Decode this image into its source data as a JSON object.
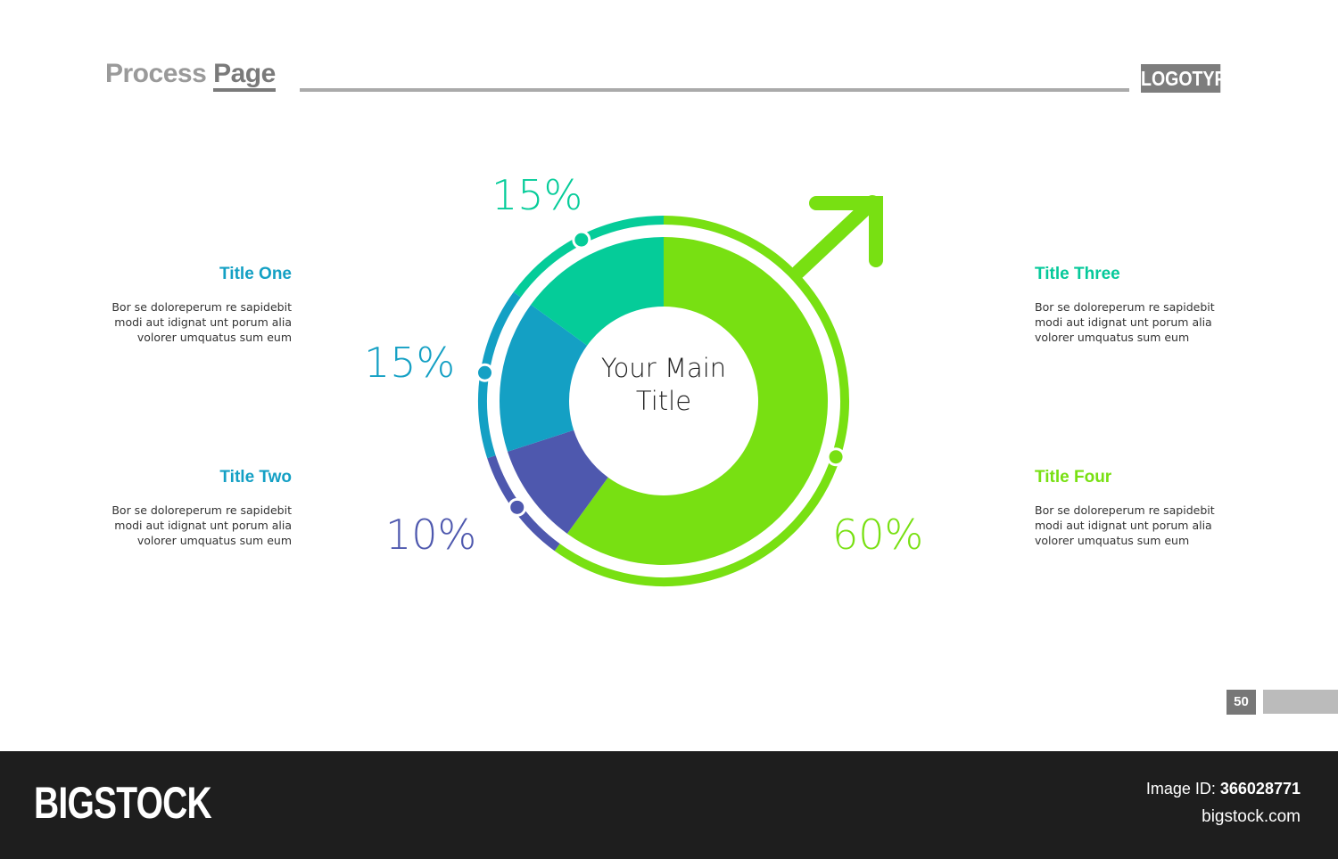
{
  "header": {
    "title_part1": "Process",
    "title_part2": "Page",
    "logo": "LOGOTYPE"
  },
  "blocks": [
    {
      "title": "Title One",
      "text": "Bor se doloreperum re sapidebit modi aut idignat unt porum alia volorer umquatus sum eum",
      "color": "#14a0c4"
    },
    {
      "title": "Title Two",
      "text": "Bor se doloreperum re sapidebit modi aut idignat unt porum alia volorer umquatus sum eum",
      "color": "#14a0c4"
    },
    {
      "title": "Title Three",
      "text": "Bor se doloreperum re sapidebit modi aut idignat unt porum alia volorer umquatus sum eum",
      "color": "#05c99a"
    },
    {
      "title": "Title Four",
      "text": "Bor se doloreperum re sapidebit modi aut idignat unt porum alia volorer umquatus sum eum",
      "color": "#78e012"
    }
  ],
  "chart_data": {
    "type": "pie",
    "variant": "donut",
    "center_label": "Your Main Title",
    "slices": [
      {
        "label": "60%",
        "value": 60,
        "color": "#78e012"
      },
      {
        "label": "10%",
        "value": 10,
        "color": "#4e58ae"
      },
      {
        "label": "15%",
        "value": 15,
        "color": "#14a0c4"
      },
      {
        "label": "15%",
        "value": 15,
        "color": "#05cc99"
      }
    ]
  },
  "page_number": "50",
  "footer": {
    "brand": "BIGSTOCK",
    "image_id_label": "Image ID:",
    "image_id": "366028771",
    "site": "bigstock.com"
  }
}
